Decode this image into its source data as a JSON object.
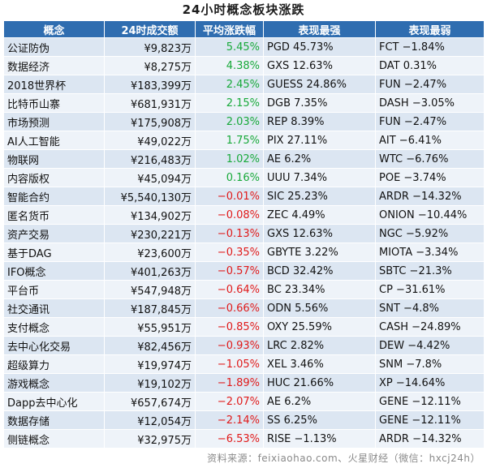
{
  "title": "24小时概念板块涨跌",
  "headers": {
    "name": "概念",
    "volume": "24时成交额",
    "change": "平均涨跌幅",
    "best": "表现最强",
    "worst": "表现最弱"
  },
  "colors": {
    "header_bg": "#2f6db0",
    "positive": "#18a93a",
    "negative": "#e01a1a",
    "row_odd": "#dce6f2",
    "row_even": "#eef3f9"
  },
  "rows": [
    {
      "name": "公证防伪",
      "volume": "¥9,823万",
      "change": "5.45%",
      "best": "PGD 45.73%",
      "worst": "FCT −1.84%"
    },
    {
      "name": "数据经济",
      "volume": "¥8,275万",
      "change": "4.38%",
      "best": "GXS 12.63%",
      "worst": "DAT 0.31%"
    },
    {
      "name": "2018世界杯",
      "volume": "¥183,399万",
      "change": "2.45%",
      "best": "GUESS 24.86%",
      "worst": "FUN −2.47%"
    },
    {
      "name": "比特币山寨",
      "volume": "¥681,931万",
      "change": "2.15%",
      "best": "DGB 7.35%",
      "worst": "DASH −3.05%"
    },
    {
      "name": "市场预测",
      "volume": "¥175,908万",
      "change": "2.03%",
      "best": "REP 8.39%",
      "worst": "FUN −2.47%"
    },
    {
      "name": "AI人工智能",
      "volume": "¥49,022万",
      "change": "1.75%",
      "best": "PIX 27.11%",
      "worst": "AIT −6.41%"
    },
    {
      "name": "物联网",
      "volume": "¥216,483万",
      "change": "1.02%",
      "best": "AE 6.2%",
      "worst": "WTC −6.76%"
    },
    {
      "name": "内容版权",
      "volume": "¥45,094万",
      "change": "0.16%",
      "best": "UUU 7.34%",
      "worst": "POE −3.74%"
    },
    {
      "name": "智能合约",
      "volume": "¥5,540,130万",
      "change": "−0.01%",
      "best": "SIC 25.23%",
      "worst": "ARDR −14.32%"
    },
    {
      "name": "匿名货币",
      "volume": "¥134,902万",
      "change": "−0.08%",
      "best": "ZEC 4.49%",
      "worst": "ONION −10.44%"
    },
    {
      "name": "资产交易",
      "volume": "¥230,221万",
      "change": "−0.13%",
      "best": "GXS 12.63%",
      "worst": "NGC −5.92%"
    },
    {
      "name": "基于DAG",
      "volume": "¥23,600万",
      "change": "−0.35%",
      "best": "GBYTE 3.22%",
      "worst": "MIOTA −3.34%"
    },
    {
      "name": "IFO概念",
      "volume": "¥401,263万",
      "change": "−0.57%",
      "best": "BCD 32.42%",
      "worst": "SBTC −21.3%"
    },
    {
      "name": "平台币",
      "volume": "¥547,948万",
      "change": "−0.64%",
      "best": "BC 23.34%",
      "worst": "CP −31.61%"
    },
    {
      "name": "社交通讯",
      "volume": "¥187,845万",
      "change": "−0.66%",
      "best": "ODN 5.56%",
      "worst": "SNT −4.8%"
    },
    {
      "name": "支付概念",
      "volume": "¥55,951万",
      "change": "−0.85%",
      "best": "OXY 25.59%",
      "worst": "CASH −24.89%"
    },
    {
      "name": "去中心化交易",
      "volume": "¥82,456万",
      "change": "−0.93%",
      "best": "LRC 2.82%",
      "worst": "DEW −4.42%"
    },
    {
      "name": "超级算力",
      "volume": "¥19,974万",
      "change": "−1.05%",
      "best": "XEL 3.46%",
      "worst": "SNM −7.8%"
    },
    {
      "name": "游戏概念",
      "volume": "¥19,102万",
      "change": "−1.89%",
      "best": "HUC 21.66%",
      "worst": "XP −14.64%"
    },
    {
      "name": "Dapp去中心化",
      "volume": "¥657,674万",
      "change": "−2.07%",
      "best": "AE 6.2%",
      "worst": "GENE −12.11%"
    },
    {
      "name": "数据存储",
      "volume": "¥12,054万",
      "change": "−2.14%",
      "best": "SS 6.25%",
      "worst": "GENE −12.11%"
    },
    {
      "name": "侧链概念",
      "volume": "¥32,975万",
      "change": "−6.53%",
      "best": "RISE −1.13%",
      "worst": "ARDR −14.32%"
    }
  ],
  "footer": "资料来源：feixiaohao.com、火星财经（微信：hxcj24h）"
}
